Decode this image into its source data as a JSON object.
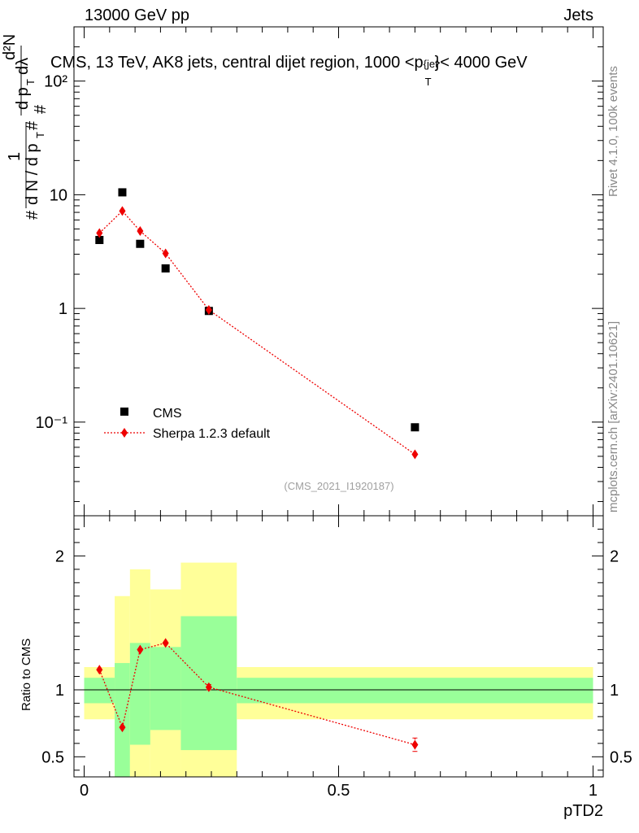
{
  "header": {
    "left": "13000 GeV pp",
    "right": "Jets"
  },
  "plot_title": "CMS, 13 TeV, AK8 jets, central dijet region, 1000 <p",
  "plot_title_sup": "{jet",
  "plot_title_sub": "T",
  "plot_title_tail": "}< 4000 GeV",
  "side_labels": {
    "rivet": "Rivet 4.1.0,  100k events",
    "mcplots": "mcplots.cern.ch [arXiv:2401.10621]"
  },
  "watermark": "(CMS_2021_I1920187)",
  "y_label_main": "1/(dN/dpT) d²N/(dpT dλ)",
  "colors": {
    "data": "#000000",
    "mc": "#ee0000",
    "band_inner": "#99ff99",
    "band_outer": "#ffff99"
  },
  "chart_data": [
    {
      "type": "scatter",
      "panel": "main",
      "yscale": "log",
      "xlim": [
        -0.02,
        1.02
      ],
      "ylim": [
        0.015,
        300
      ],
      "y_ticks": [
        "10⁻¹",
        "1",
        "10",
        "10²"
      ],
      "series": [
        {
          "name": "CMS",
          "marker": "square",
          "x": [
            0.03,
            0.075,
            0.11,
            0.16,
            0.245,
            0.65
          ],
          "values": [
            4.0,
            10.5,
            3.7,
            2.25,
            0.95,
            0.09
          ]
        },
        {
          "name": "Sherpa 1.2.3 default",
          "marker": "diamond",
          "line": "dotted",
          "x": [
            0.03,
            0.075,
            0.11,
            0.16,
            0.245,
            0.65
          ],
          "values": [
            4.6,
            7.2,
            4.8,
            3.05,
            0.97,
            0.052
          ]
        }
      ],
      "legend": [
        "CMS",
        "Sherpa 1.2.3 default"
      ],
      "legend_position": "lower-left"
    },
    {
      "type": "line",
      "panel": "ratio",
      "ylabel": "Ratio to CMS",
      "xlabel": "pTD2",
      "xlim": [
        -0.02,
        1.02
      ],
      "ylim": [
        0.35,
        2.3
      ],
      "x_ticks": [
        "0",
        "0.5",
        "1"
      ],
      "y_ticks": [
        "0.5",
        "1",
        "2"
      ],
      "bins": [
        {
          "lo": 0.0,
          "hi": 0.06,
          "inner": [
            0.9,
            1.09
          ],
          "outer": [
            0.78,
            1.17
          ]
        },
        {
          "lo": 0.06,
          "hi": 0.09,
          "inner": [
            0.35,
            1.2
          ],
          "outer": [
            0.35,
            1.7
          ]
        },
        {
          "lo": 0.09,
          "hi": 0.13,
          "inner": [
            0.59,
            1.35
          ],
          "outer": [
            0.35,
            1.9
          ]
        },
        {
          "lo": 0.13,
          "hi": 0.19,
          "inner": [
            0.7,
            1.32
          ],
          "outer": [
            0.35,
            1.75
          ]
        },
        {
          "lo": 0.19,
          "hi": 0.3,
          "inner": [
            0.55,
            1.55
          ],
          "outer": [
            0.35,
            1.95
          ]
        },
        {
          "lo": 0.3,
          "hi": 1.0,
          "inner": [
            0.9,
            1.09
          ],
          "outer": [
            0.78,
            1.17
          ]
        }
      ],
      "series": [
        {
          "name": "Sherpa 1.2.3 default",
          "x": [
            0.03,
            0.075,
            0.11,
            0.16,
            0.245,
            0.65
          ],
          "values": [
            1.15,
            0.72,
            1.3,
            1.35,
            1.02,
            0.59
          ],
          "errors": [
            0.0,
            0.0,
            0.0,
            0.0,
            0.02,
            0.05
          ]
        }
      ]
    }
  ]
}
